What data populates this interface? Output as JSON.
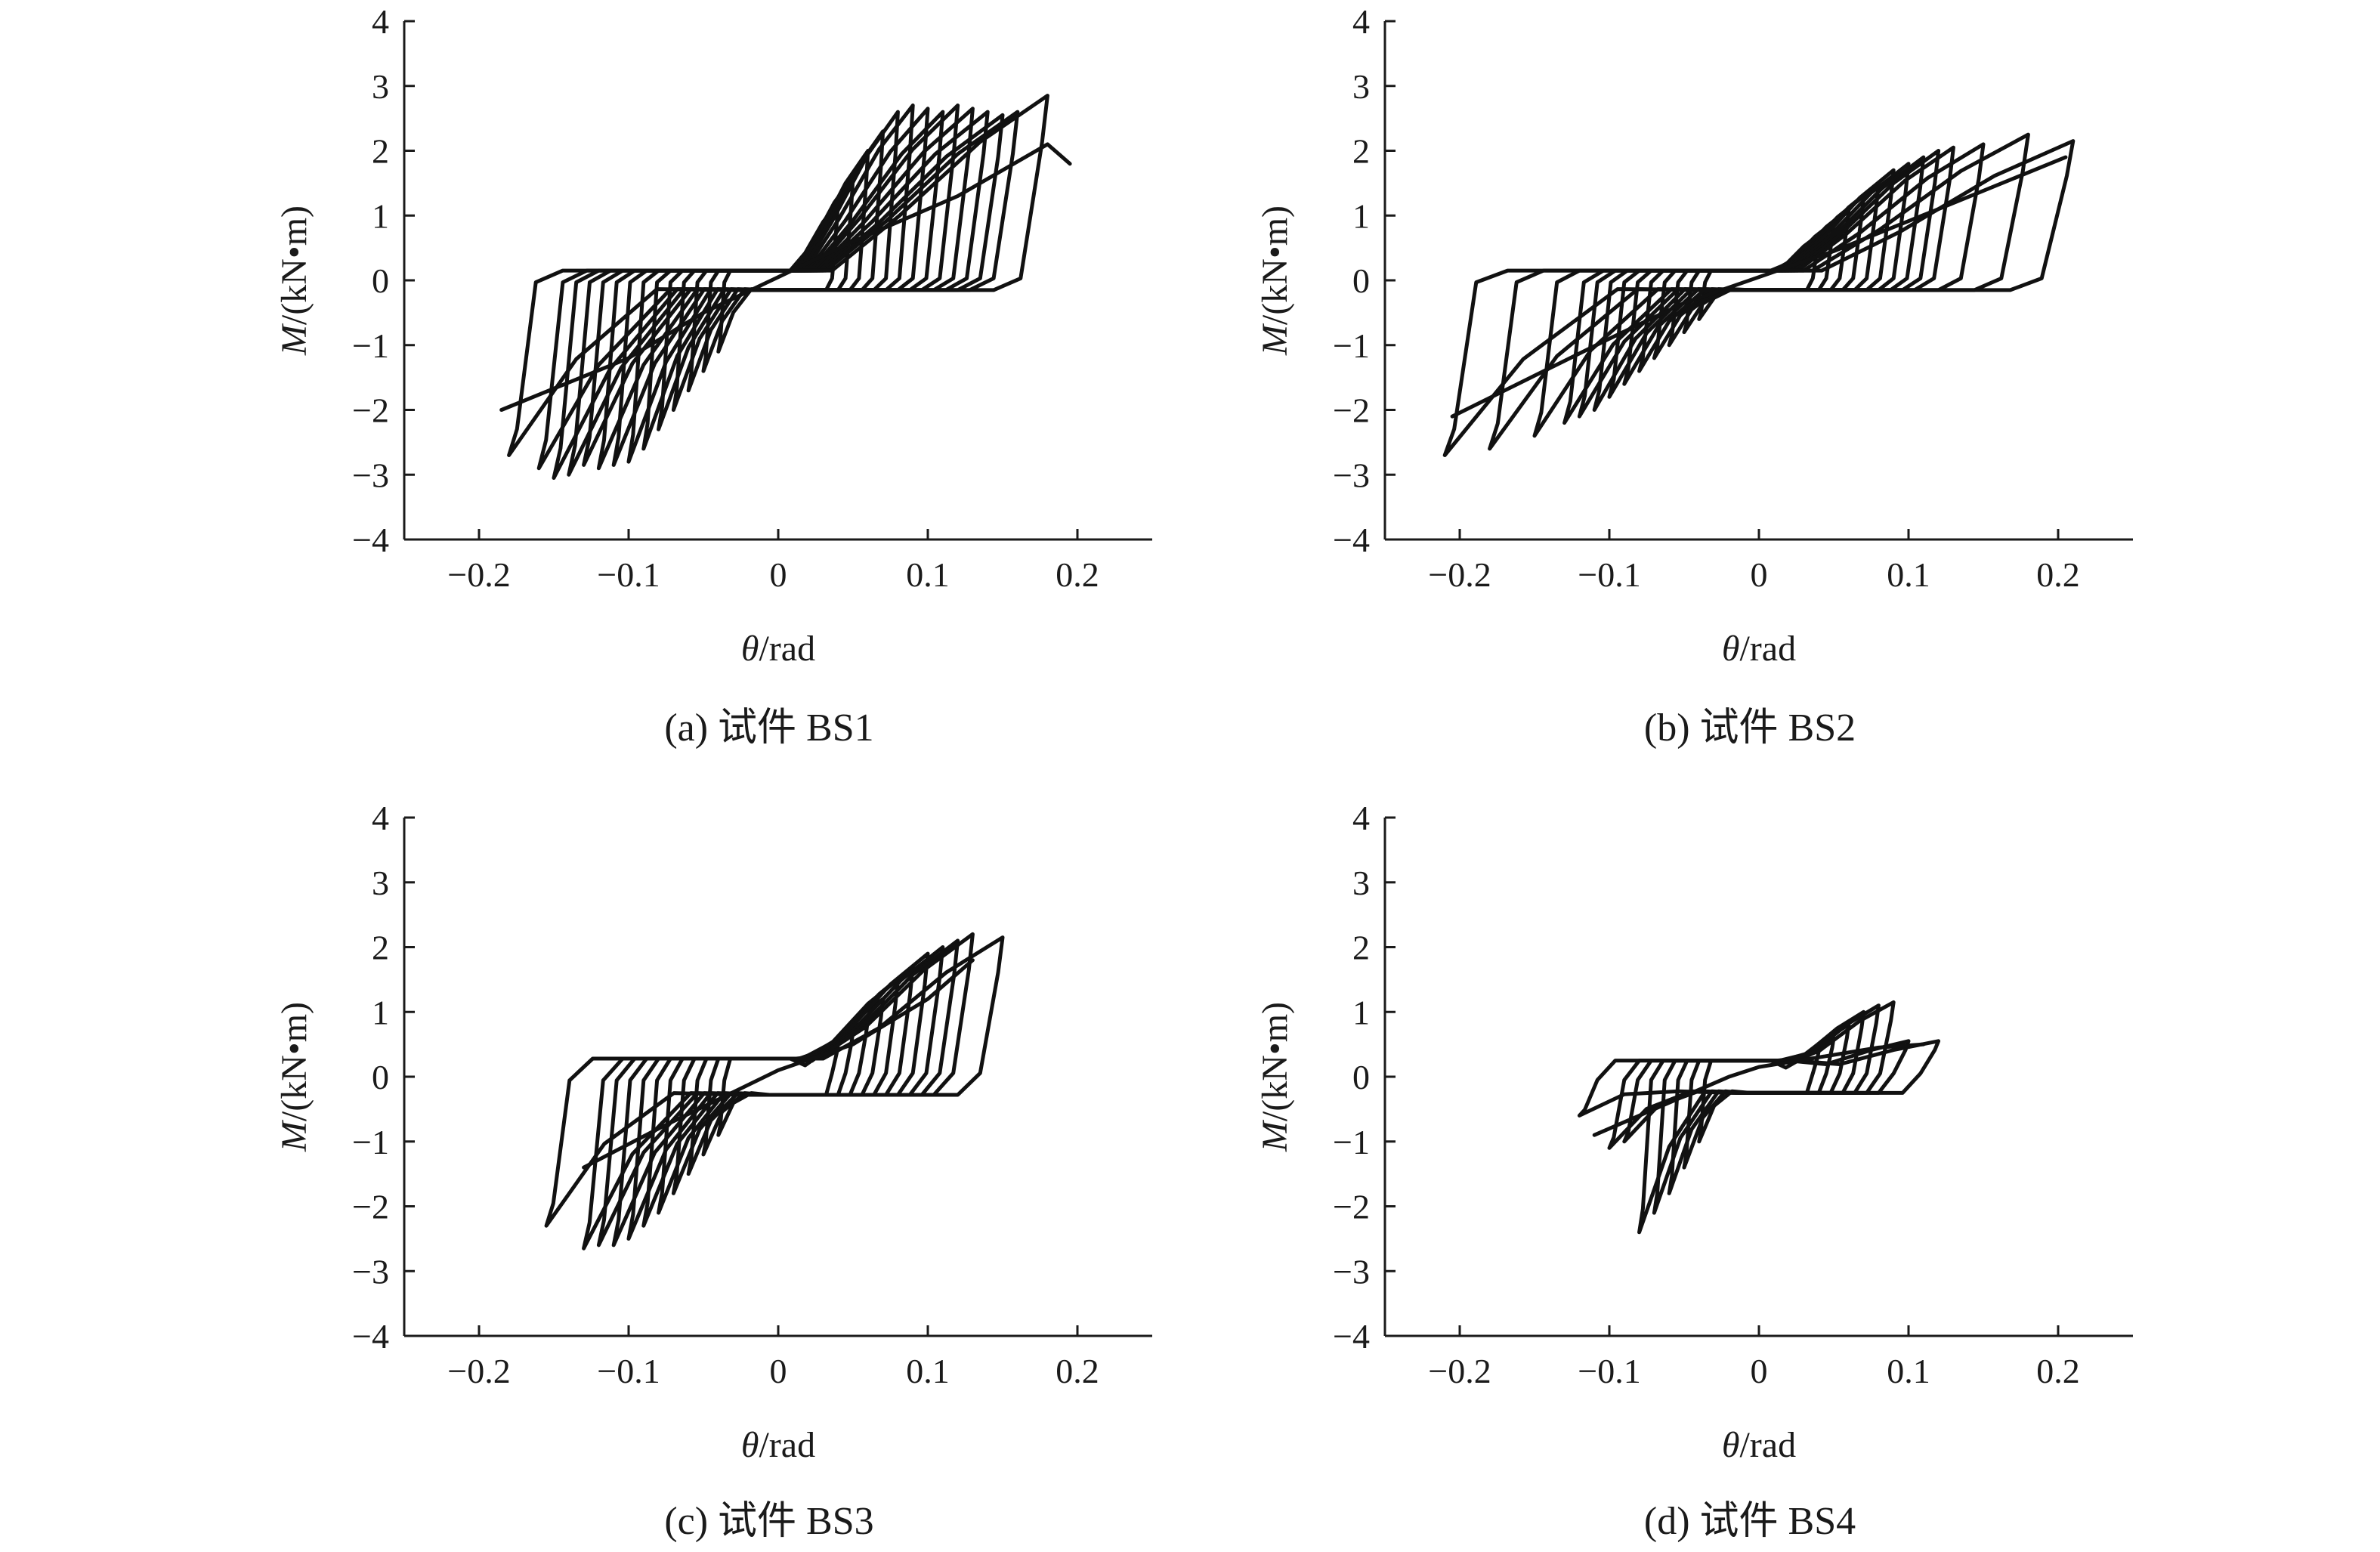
{
  "chart_data": [
    {
      "type": "line",
      "caption": "(a) 试件 BS1",
      "xlabel_var": "θ",
      "xlabel_unit": "/rad",
      "ylabel_var": "M",
      "ylabel_unit": "/(kN•m)",
      "xlim": [
        -0.25,
        0.25
      ],
      "ylim": [
        -4,
        4
      ],
      "xticks": [
        -0.2,
        -0.1,
        0,
        0.1,
        0.2
      ],
      "xtick_labels": [
        "−0.2",
        "−0.1",
        "0",
        "0.1",
        "0.2"
      ],
      "yticks": [
        -4,
        -3,
        -2,
        -1,
        0,
        1,
        2,
        3,
        4
      ],
      "ytick_labels": [
        "−4",
        "−3",
        "−2",
        "−1",
        "0",
        "1",
        "2",
        "3",
        "4"
      ],
      "friction": 0.15,
      "loops": [
        {
          "pos": [
            0.04,
            1.2
          ],
          "neg": [
            -0.04,
            -1.1
          ]
        },
        {
          "pos": [
            0.05,
            1.6
          ],
          "neg": [
            -0.05,
            -1.4
          ]
        },
        {
          "pos": [
            0.06,
            2.0
          ],
          "neg": [
            -0.06,
            -1.7
          ]
        },
        {
          "pos": [
            0.07,
            2.3
          ],
          "neg": [
            -0.07,
            -2.0
          ]
        },
        {
          "pos": [
            0.08,
            2.6
          ],
          "neg": [
            -0.08,
            -2.3
          ]
        },
        {
          "pos": [
            0.09,
            2.7
          ],
          "neg": [
            -0.09,
            -2.6
          ]
        },
        {
          "pos": [
            0.1,
            2.65
          ],
          "neg": [
            -0.1,
            -2.8
          ]
        },
        {
          "pos": [
            0.11,
            2.6
          ],
          "neg": [
            -0.11,
            -2.85
          ]
        },
        {
          "pos": [
            0.12,
            2.7
          ],
          "neg": [
            -0.12,
            -2.9
          ]
        },
        {
          "pos": [
            0.13,
            2.65
          ],
          "neg": [
            -0.13,
            -2.85
          ]
        },
        {
          "pos": [
            0.14,
            2.6
          ],
          "neg": [
            -0.14,
            -3.0
          ]
        },
        {
          "pos": [
            0.15,
            2.55
          ],
          "neg": [
            -0.15,
            -3.05
          ]
        },
        {
          "pos": [
            0.16,
            2.6
          ],
          "neg": [
            -0.16,
            -2.9
          ]
        },
        {
          "pos": [
            0.18,
            2.85
          ],
          "neg": [
            -0.18,
            -2.7
          ]
        }
      ],
      "envelope": {
        "x": [
          -0.185,
          -0.1,
          -0.05,
          0,
          0.05,
          0.12,
          0.18,
          0.195
        ],
        "y": [
          -2.0,
          -1.2,
          -0.5,
          0.05,
          0.6,
          1.3,
          2.1,
          1.8
        ]
      }
    },
    {
      "type": "line",
      "caption": "(b) 试件 BS2",
      "xlabel_var": "θ",
      "xlabel_unit": "/rad",
      "ylabel_var": "M",
      "ylabel_unit": "/(kN•m)",
      "xlim": [
        -0.25,
        0.25
      ],
      "ylim": [
        -4,
        4
      ],
      "xticks": [
        -0.2,
        -0.1,
        0,
        0.1,
        0.2
      ],
      "xtick_labels": [
        "−0.2",
        "−0.1",
        "0",
        "0.1",
        "0.2"
      ],
      "yticks": [
        -4,
        -3,
        -2,
        -1,
        0,
        1,
        2,
        3,
        4
      ],
      "ytick_labels": [
        "−4",
        "−3",
        "−2",
        "−1",
        "0",
        "1",
        "2",
        "3",
        "4"
      ],
      "friction": 0.15,
      "loops": [
        {
          "pos": [
            0.04,
            0.7
          ],
          "neg": [
            -0.04,
            -0.6
          ]
        },
        {
          "pos": [
            0.05,
            0.9
          ],
          "neg": [
            -0.05,
            -0.8
          ]
        },
        {
          "pos": [
            0.06,
            1.1
          ],
          "neg": [
            -0.06,
            -1.0
          ]
        },
        {
          "pos": [
            0.07,
            1.3
          ],
          "neg": [
            -0.07,
            -1.2
          ]
        },
        {
          "pos": [
            0.08,
            1.5
          ],
          "neg": [
            -0.08,
            -1.4
          ]
        },
        {
          "pos": [
            0.09,
            1.7
          ],
          "neg": [
            -0.09,
            -1.6
          ]
        },
        {
          "pos": [
            0.1,
            1.8
          ],
          "neg": [
            -0.1,
            -1.8
          ]
        },
        {
          "pos": [
            0.11,
            1.9
          ],
          "neg": [
            -0.11,
            -2.0
          ]
        },
        {
          "pos": [
            0.12,
            2.0
          ],
          "neg": [
            -0.12,
            -2.1
          ]
        },
        {
          "pos": [
            0.13,
            2.05
          ],
          "neg": [
            -0.13,
            -2.2
          ]
        },
        {
          "pos": [
            0.15,
            2.1
          ],
          "neg": [
            -0.15,
            -2.4
          ]
        },
        {
          "pos": [
            0.18,
            2.25
          ],
          "neg": [
            -0.18,
            -2.6
          ]
        },
        {
          "pos": [
            0.21,
            2.15
          ],
          "neg": [
            -0.21,
            -2.7
          ]
        }
      ],
      "envelope": {
        "x": [
          -0.205,
          -0.1,
          -0.05,
          0,
          0.05,
          0.12,
          0.205
        ],
        "y": [
          -2.1,
          -0.9,
          -0.35,
          0.05,
          0.45,
          1.1,
          1.9
        ]
      }
    },
    {
      "type": "line",
      "caption": "(c) 试件 BS3",
      "xlabel_var": "θ",
      "xlabel_unit": "/rad",
      "ylabel_var": "M",
      "ylabel_unit": "/(kN•m)",
      "xlim": [
        -0.25,
        0.25
      ],
      "ylim": [
        -4,
        4
      ],
      "xticks": [
        -0.2,
        -0.1,
        0,
        0.1,
        0.2
      ],
      "xtick_labels": [
        "−0.2",
        "−0.1",
        "0",
        "0.1",
        "0.2"
      ],
      "yticks": [
        -4,
        -3,
        -2,
        -1,
        0,
        1,
        2,
        3,
        4
      ],
      "ytick_labels": [
        "−4",
        "−3",
        "−2",
        "−1",
        "0",
        "1",
        "2",
        "3",
        "4"
      ],
      "friction": 0.28,
      "loops": [
        {
          "pos": [
            0.04,
            0.5
          ],
          "neg": [
            -0.04,
            -0.9
          ]
        },
        {
          "pos": [
            0.05,
            0.7
          ],
          "neg": [
            -0.05,
            -1.2
          ]
        },
        {
          "pos": [
            0.06,
            0.9
          ],
          "neg": [
            -0.06,
            -1.5
          ]
        },
        {
          "pos": [
            0.07,
            1.2
          ],
          "neg": [
            -0.07,
            -1.8
          ]
        },
        {
          "pos": [
            0.08,
            1.5
          ],
          "neg": [
            -0.08,
            -2.1
          ]
        },
        {
          "pos": [
            0.09,
            1.7
          ],
          "neg": [
            -0.09,
            -2.3
          ]
        },
        {
          "pos": [
            0.1,
            1.9
          ],
          "neg": [
            -0.1,
            -2.5
          ]
        },
        {
          "pos": [
            0.11,
            2.0
          ],
          "neg": [
            -0.11,
            -2.6
          ]
        },
        {
          "pos": [
            0.12,
            2.1
          ],
          "neg": [
            -0.12,
            -2.6
          ]
        },
        {
          "pos": [
            0.13,
            2.2
          ],
          "neg": [
            -0.13,
            -2.65
          ]
        },
        {
          "pos": [
            0.15,
            2.15
          ],
          "neg": [
            -0.155,
            -2.3
          ]
        }
      ],
      "envelope": {
        "x": [
          -0.13,
          -0.08,
          -0.04,
          0,
          0.05,
          0.1,
          0.13
        ],
        "y": [
          -1.4,
          -0.8,
          -0.35,
          0.1,
          0.5,
          1.2,
          1.8
        ]
      }
    },
    {
      "type": "line",
      "caption": "(d) 试件 BS4",
      "xlabel_var": "θ",
      "xlabel_unit": "/rad",
      "ylabel_var": "M",
      "ylabel_unit": "/(kN•m)",
      "xlim": [
        -0.25,
        0.25
      ],
      "ylim": [
        -4,
        4
      ],
      "xticks": [
        -0.2,
        -0.1,
        0,
        0.1,
        0.2
      ],
      "xtick_labels": [
        "−0.2",
        "−0.1",
        "0",
        "0.1",
        "0.2"
      ],
      "yticks": [
        -4,
        -3,
        -2,
        -1,
        0,
        1,
        2,
        3,
        4
      ],
      "ytick_labels": [
        "−4",
        "−3",
        "−2",
        "−1",
        "0",
        "1",
        "2",
        "3",
        "4"
      ],
      "friction": 0.25,
      "loops": [
        {
          "pos": [
            0.04,
            0.4
          ],
          "neg": [
            -0.04,
            -1.0
          ]
        },
        {
          "pos": [
            0.05,
            0.6
          ],
          "neg": [
            -0.05,
            -1.4
          ]
        },
        {
          "pos": [
            0.06,
            0.8
          ],
          "neg": [
            -0.06,
            -1.8
          ]
        },
        {
          "pos": [
            0.07,
            1.0
          ],
          "neg": [
            -0.07,
            -2.1
          ]
        },
        {
          "pos": [
            0.08,
            1.1
          ],
          "neg": [
            -0.08,
            -2.4
          ]
        },
        {
          "pos": [
            0.09,
            1.15
          ],
          "neg": [
            -0.09,
            -1.0
          ]
        },
        {
          "pos": [
            0.1,
            0.55
          ],
          "neg": [
            -0.1,
            -1.1
          ]
        },
        {
          "pos": [
            0.12,
            0.55
          ],
          "neg": [
            -0.12,
            -0.6
          ]
        }
      ],
      "envelope": {
        "x": [
          -0.11,
          -0.06,
          -0.02,
          0,
          0.04,
          0.08,
          0.11
        ],
        "y": [
          -0.9,
          -0.4,
          0.0,
          0.15,
          0.3,
          0.45,
          0.5
        ]
      }
    }
  ]
}
